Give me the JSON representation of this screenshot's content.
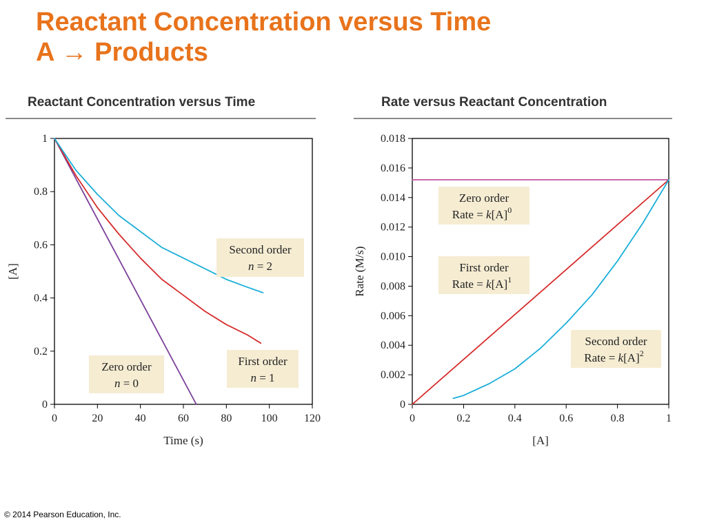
{
  "slide": {
    "title_line1": "Reactant Concentration versus Time",
    "title_line2": "A → Products",
    "footer": "© 2014 Pearson Education, Inc.",
    "title_color": "#e8731c"
  },
  "chart_data": [
    {
      "type": "line",
      "title": "Reactant Concentration versus Time",
      "xlabel": "Time (s)",
      "ylabel": "[A]",
      "xlim": [
        0,
        120
      ],
      "ylim": [
        0,
        1
      ],
      "xticks": [
        0,
        20,
        40,
        60,
        80,
        100,
        120
      ],
      "yticks": [
        0,
        0.2,
        0.4,
        0.6,
        0.8,
        1
      ],
      "ytick_labels": [
        "0",
        "0.2",
        "0.4",
        "0.6",
        "0.8",
        "1"
      ],
      "grid": false,
      "series": [
        {
          "color": "#7b3f98",
          "x": [
            0,
            66
          ],
          "y": [
            1,
            0
          ]
        },
        {
          "color": "#d62b2b",
          "x": [
            0,
            10,
            20,
            30,
            40,
            50,
            60,
            70,
            80,
            90,
            96
          ],
          "y": [
            1,
            0.86,
            0.74,
            0.64,
            0.55,
            0.47,
            0.41,
            0.35,
            0.3,
            0.26,
            0.23
          ]
        },
        {
          "color": "#1aaed8",
          "x": [
            0,
            10,
            20,
            30,
            40,
            50,
            60,
            70,
            80,
            90,
            97
          ],
          "y": [
            1,
            0.88,
            0.79,
            0.71,
            0.65,
            0.59,
            0.55,
            0.51,
            0.47,
            0.44,
            0.42
          ]
        }
      ],
      "annotations": [
        {
          "lines": [
            "Zero order",
            "n  =  0"
          ]
        },
        {
          "lines": [
            "First order",
            "n  =  1"
          ]
        },
        {
          "lines": [
            "Second order",
            "n  =  2"
          ]
        }
      ]
    },
    {
      "type": "line",
      "title": "Rate versus Reactant Concentration",
      "xlabel": "[A]",
      "ylabel": "Rate (M/s)",
      "xlim": [
        0,
        1
      ],
      "ylim": [
        0,
        0.018
      ],
      "xticks": [
        0,
        0.2,
        0.4,
        0.6,
        0.8,
        1
      ],
      "xtick_labels": [
        "0",
        "0.2",
        "0.4",
        "0.6",
        "0.8",
        "1"
      ],
      "yticks": [
        0,
        0.002,
        0.004,
        0.006,
        0.008,
        0.01,
        0.012,
        0.014,
        0.016,
        0.018
      ],
      "ytick_labels": [
        "0",
        "0.002",
        "0.004",
        "0.006",
        "0.008",
        "0.010",
        "0.012",
        "0.014",
        "0.016",
        "0.018"
      ],
      "grid": false,
      "series": [
        {
          "color": "#c2529f",
          "x": [
            0,
            1
          ],
          "y": [
            0.0152,
            0.0152
          ]
        },
        {
          "color": "#d62b2b",
          "x": [
            0,
            1
          ],
          "y": [
            0,
            0.0152
          ]
        },
        {
          "color": "#1aaed8",
          "x": [
            0.16,
            0.2,
            0.3,
            0.4,
            0.5,
            0.6,
            0.7,
            0.8,
            0.9,
            1
          ],
          "y": [
            0.0004,
            0.0006,
            0.0014,
            0.0024,
            0.0038,
            0.0055,
            0.0074,
            0.0097,
            0.0123,
            0.0152
          ]
        }
      ],
      "annotations": [
        {
          "lines": [
            "Zero order",
            "Rate  =  k[A]",
            "0"
          ]
        },
        {
          "lines": [
            "First order",
            "Rate  =  k[A]",
            "1"
          ]
        },
        {
          "lines": [
            "Second order",
            "Rate  =  k[A]",
            "2"
          ]
        }
      ]
    }
  ]
}
